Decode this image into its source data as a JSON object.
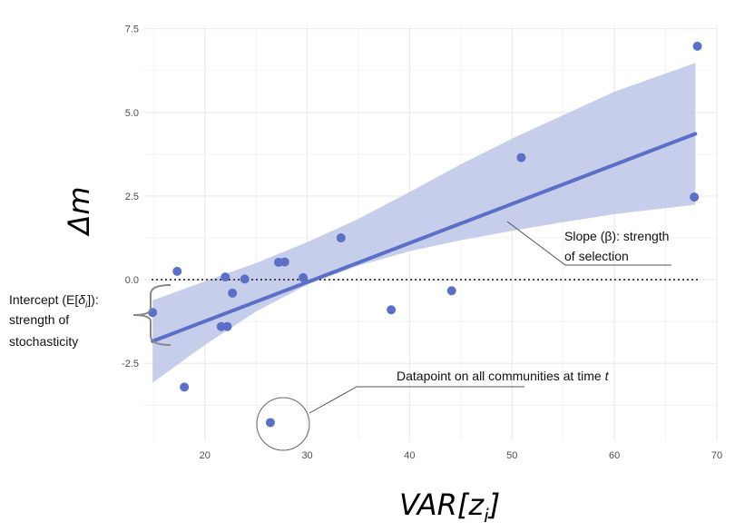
{
  "chart_data": {
    "type": "scatter",
    "title": "",
    "xlabel": "VAR[z",
    "xlabel_sub": "i",
    "xlabel_close": "]",
    "ylabel": "Δm",
    "xlim": [
      14,
      70
    ],
    "ylim": [
      -4.8,
      7.6
    ],
    "x_ticks": [
      20,
      30,
      40,
      50,
      60,
      70
    ],
    "y_ticks": [
      -2.5,
      0.0,
      2.5,
      5.0,
      7.5
    ],
    "x_tick_labels": [
      "20",
      "30",
      "40",
      "50",
      "60",
      "70"
    ],
    "y_tick_labels": [
      "-2.5",
      "0.0",
      "2.5",
      "5.0",
      "7.5"
    ],
    "grid": true,
    "colors": {
      "points": "#5b6fc6",
      "line": "#5b6fc6",
      "band": "#bcc5e8",
      "grid": "#ebebeb"
    },
    "points": [
      {
        "x": 14.9,
        "y": -0.98
      },
      {
        "x": 17.3,
        "y": 0.25
      },
      {
        "x": 18.0,
        "y": -3.21
      },
      {
        "x": 21.6,
        "y": -1.4
      },
      {
        "x": 22.0,
        "y": 0.08
      },
      {
        "x": 22.2,
        "y": -1.4
      },
      {
        "x": 22.7,
        "y": -0.4
      },
      {
        "x": 23.9,
        "y": 0.02
      },
      {
        "x": 27.2,
        "y": 0.52
      },
      {
        "x": 27.8,
        "y": 0.53
      },
      {
        "x": 29.6,
        "y": 0.06
      },
      {
        "x": 33.3,
        "y": 1.25
      },
      {
        "x": 26.4,
        "y": -4.27
      },
      {
        "x": 38.2,
        "y": -0.9
      },
      {
        "x": 44.1,
        "y": -0.33
      },
      {
        "x": 50.9,
        "y": 3.65
      },
      {
        "x": 67.8,
        "y": 2.47
      },
      {
        "x": 68.1,
        "y": 6.98
      }
    ],
    "fit": {
      "x0": 14.9,
      "y0": -1.84,
      "x1": 67.9,
      "y1": 4.36
    },
    "band": [
      {
        "x": 14.9,
        "lo": -3.08,
        "hi": -0.62
      },
      {
        "x": 20.0,
        "lo": -1.95,
        "hi": -0.05
      },
      {
        "x": 25.0,
        "lo": -0.95,
        "hi": 0.5
      },
      {
        "x": 30.0,
        "lo": -0.15,
        "hi": 1.12
      },
      {
        "x": 35.0,
        "lo": 0.42,
        "hi": 1.82
      },
      {
        "x": 40.0,
        "lo": 0.85,
        "hi": 2.62
      },
      {
        "x": 45.0,
        "lo": 1.18,
        "hi": 3.45
      },
      {
        "x": 50.0,
        "lo": 1.46,
        "hi": 4.22
      },
      {
        "x": 55.0,
        "lo": 1.72,
        "hi": 4.92
      },
      {
        "x": 60.0,
        "lo": 1.96,
        "hi": 5.62
      },
      {
        "x": 67.9,
        "lo": 2.24,
        "hi": 6.48
      }
    ],
    "reference_line_y": 0.0
  },
  "annotations": {
    "slope_line1": "Slope (β): strength",
    "slope_line2": "of selection",
    "intercept_line1_pre": "Intercept (E[",
    "intercept_delta": "δ",
    "intercept_sub": "i",
    "intercept_line1_post": "]):",
    "intercept_line2": "strength of",
    "intercept_line3": "stochasticity",
    "datapoint_text": "Datapoint on all communities at time ",
    "datapoint_t": "t"
  }
}
